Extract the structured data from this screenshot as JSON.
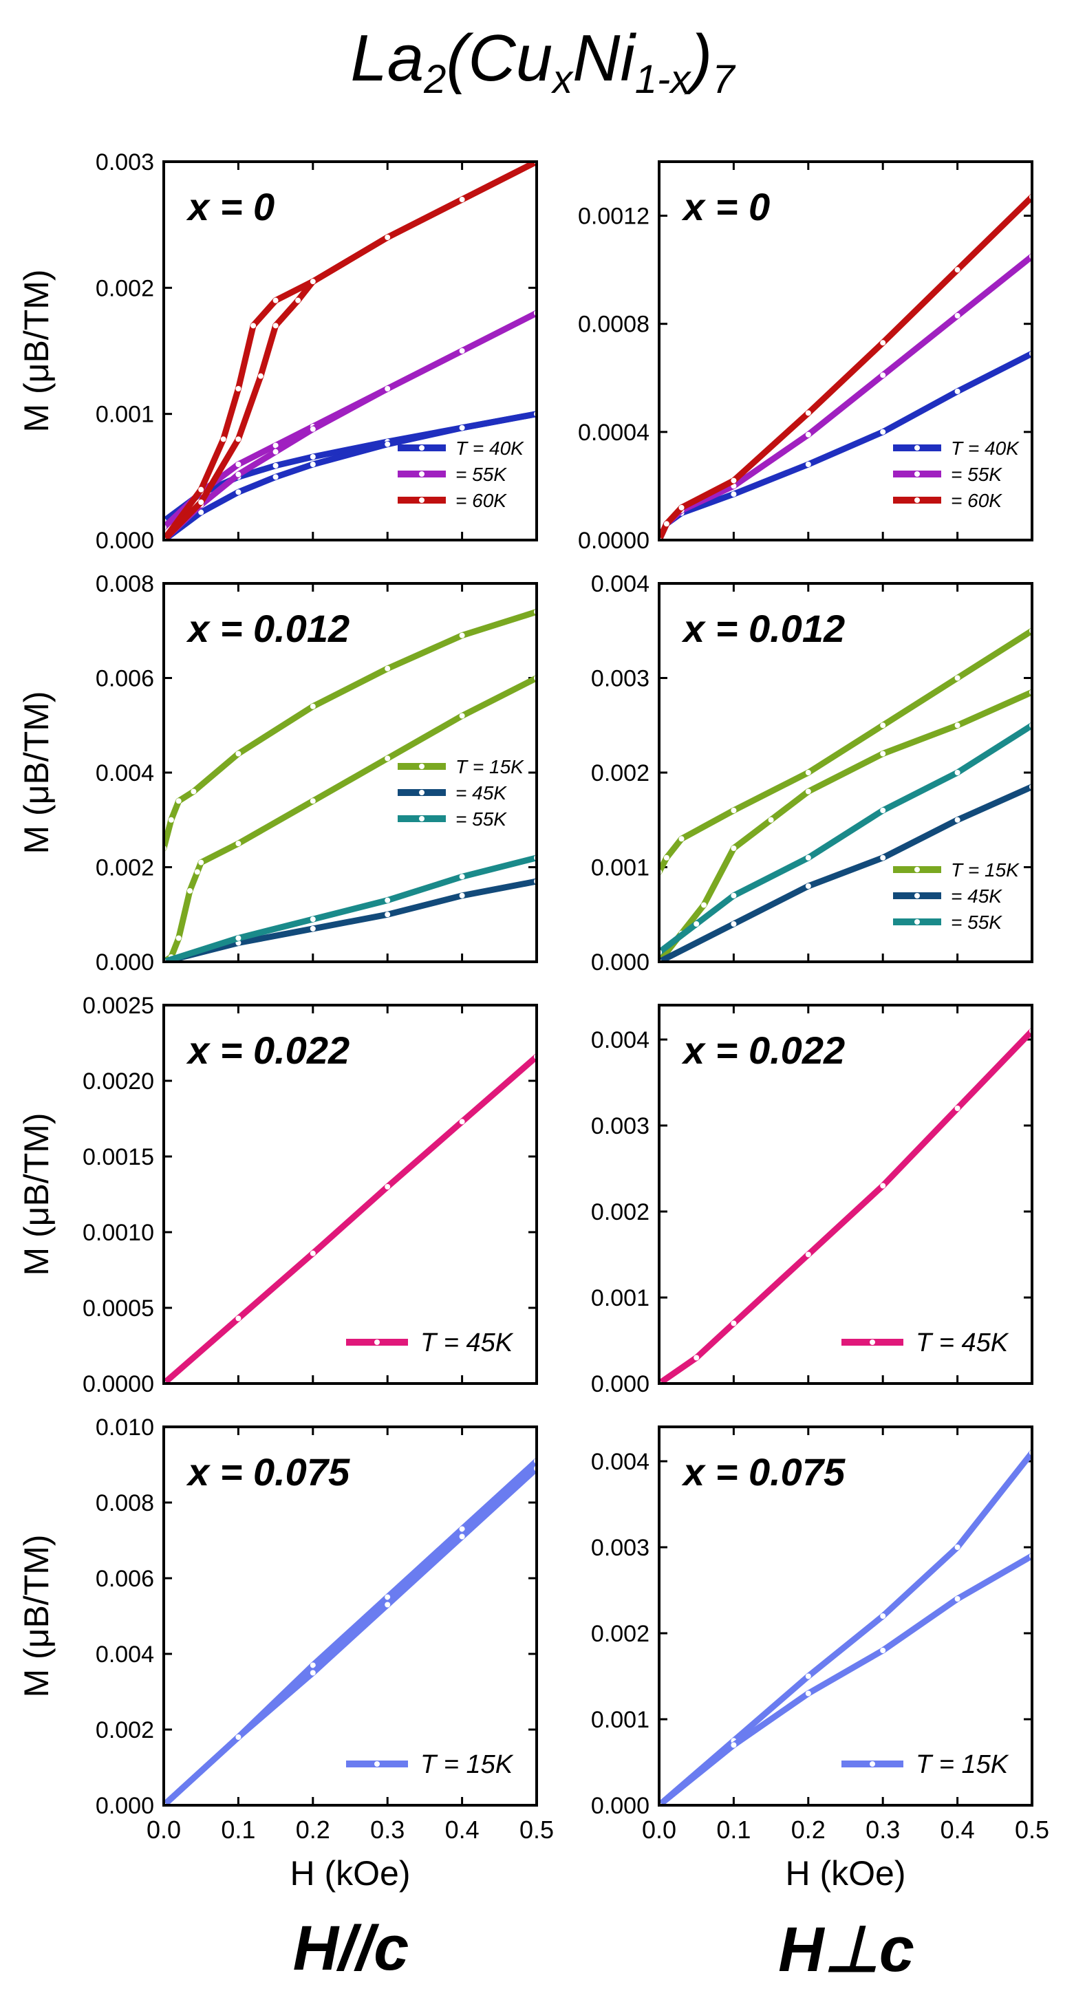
{
  "figure": {
    "title": {
      "base": "La",
      "sub1": "2",
      "open": "(Cu",
      "sub2": "x",
      "mid": "Ni",
      "sub3": "1-x",
      "close": ")",
      "sub4": "7"
    },
    "column_titles": [
      "H//c",
      "H⊥c"
    ],
    "xlabel": "H (kOe)",
    "ylabel": "M (μB/TM)"
  },
  "chart_data": [
    {
      "type": "line",
      "panel": "x=0, H//c",
      "label": "x = 0",
      "xlim": [
        0,
        0.5
      ],
      "ylim": [
        0,
        0.003
      ],
      "xticks": [
        "0.0",
        "0.1",
        "0.2",
        "0.3",
        "0.4",
        "0.5"
      ],
      "yticks": [
        "0.000",
        "0.001",
        "0.002",
        "0.003"
      ],
      "legend": [
        "T = 40K",
        "= 55K",
        "= 60K"
      ],
      "series": [
        {
          "name": "T = 40K",
          "color": "#1f2fbf",
          "x": [
            0,
            0.05,
            0.1,
            0.15,
            0.2,
            0.3,
            0.4,
            0.5
          ],
          "y": [
            0.00015,
            0.00037,
            0.0005,
            0.00059,
            0.00066,
            0.00078,
            0.00089,
            0.001
          ]
        },
        {
          "name": "T = 40K",
          "color": "#1f2fbf",
          "x": [
            0,
            0.05,
            0.1,
            0.15,
            0.2,
            0.3,
            0.4,
            0.5
          ],
          "y": [
            0,
            0.00022,
            0.00038,
            0.0005,
            0.0006,
            0.00076,
            0.00089,
            0.001
          ]
        },
        {
          "name": "= 55K",
          "color": "#a020c0",
          "x": [
            0,
            0.05,
            0.1,
            0.15,
            0.2,
            0.3,
            0.4,
            0.5
          ],
          "y": [
            0.0001,
            0.00038,
            0.0006,
            0.00075,
            0.0009,
            0.0012,
            0.0015,
            0.0018
          ]
        },
        {
          "name": "= 55K",
          "color": "#a020c0",
          "x": [
            0,
            0.05,
            0.1,
            0.15,
            0.2,
            0.3,
            0.4,
            0.5
          ],
          "y": [
            0,
            0.00028,
            0.00052,
            0.0007,
            0.00088,
            0.0012,
            0.0015,
            0.0018
          ]
        },
        {
          "name": "= 60K",
          "color": "#c01010",
          "x": [
            0,
            0.05,
            0.08,
            0.1,
            0.12,
            0.15,
            0.2,
            0.3,
            0.4,
            0.5
          ],
          "y": [
            0,
            0.0004,
            0.0008,
            0.0012,
            0.0017,
            0.0019,
            0.00205,
            0.0024,
            0.0027,
            0.003
          ]
        },
        {
          "name": "= 60K",
          "color": "#c01010",
          "x": [
            0,
            0.05,
            0.1,
            0.13,
            0.15,
            0.18,
            0.2,
            0.3,
            0.4,
            0.5
          ],
          "y": [
            0,
            0.0003,
            0.0008,
            0.0013,
            0.0017,
            0.0019,
            0.00205,
            0.0024,
            0.0027,
            0.003
          ]
        }
      ]
    },
    {
      "type": "line",
      "panel": "x=0, H⊥c",
      "label": "x = 0",
      "xlim": [
        0,
        0.5
      ],
      "ylim": [
        0,
        0.0014
      ],
      "xticks": [
        "0.0",
        "0.1",
        "0.2",
        "0.3",
        "0.4",
        "0.5"
      ],
      "yticks": [
        "0.0000",
        "0.0004",
        "0.0008",
        "0.0012"
      ],
      "legend": [
        "T = 40K",
        "= 55K",
        "= 60K"
      ],
      "series": [
        {
          "name": "T = 40K",
          "color": "#1f2fbf",
          "x": [
            0,
            0.01,
            0.03,
            0.1,
            0.2,
            0.3,
            0.4,
            0.5
          ],
          "y": [
            0,
            6e-05,
            0.0001,
            0.00017,
            0.00028,
            0.0004,
            0.00055,
            0.00069
          ]
        },
        {
          "name": "= 55K",
          "color": "#a020c0",
          "x": [
            0,
            0.01,
            0.03,
            0.1,
            0.2,
            0.3,
            0.4,
            0.5
          ],
          "y": [
            0,
            6e-05,
            0.00011,
            0.0002,
            0.00039,
            0.00061,
            0.00083,
            0.00105
          ]
        },
        {
          "name": "= 60K",
          "color": "#c01010",
          "x": [
            0,
            0.01,
            0.03,
            0.1,
            0.2,
            0.3,
            0.4,
            0.5
          ],
          "y": [
            0,
            6e-05,
            0.00012,
            0.00022,
            0.00047,
            0.00073,
            0.001,
            0.00127
          ]
        }
      ]
    },
    {
      "type": "line",
      "panel": "x=0.012, H//c",
      "label": "x = 0.012",
      "xlim": [
        0,
        0.5
      ],
      "ylim": [
        0,
        0.008
      ],
      "xticks": [
        "0.0",
        "0.1",
        "0.2",
        "0.3",
        "0.4",
        "0.5"
      ],
      "yticks": [
        "0.000",
        "0.002",
        "0.004",
        "0.006",
        "0.008"
      ],
      "legend": [
        "T = 15K",
        "= 45K",
        "= 55K"
      ],
      "series": [
        {
          "name": "T = 15K",
          "color": "#7aa821",
          "x": [
            0,
            0.01,
            0.02,
            0.04,
            0.1,
            0.2,
            0.3,
            0.4,
            0.5
          ],
          "y": [
            0.0024,
            0.003,
            0.0034,
            0.0036,
            0.0044,
            0.0054,
            0.0062,
            0.0069,
            0.0074
          ]
        },
        {
          "name": "T = 15K",
          "color": "#7aa821",
          "x": [
            0,
            0.01,
            0.02,
            0.035,
            0.045,
            0.05,
            0.1,
            0.2,
            0.3,
            0.4,
            0.5
          ],
          "y": [
            0,
            0.0001,
            0.0005,
            0.0015,
            0.0019,
            0.0021,
            0.0025,
            0.0034,
            0.0043,
            0.0052,
            0.006
          ]
        },
        {
          "name": "= 45K",
          "color": "#124a7a",
          "x": [
            0,
            0.1,
            0.2,
            0.3,
            0.4,
            0.5
          ],
          "y": [
            0,
            0.0004,
            0.0007,
            0.001,
            0.0014,
            0.0017
          ]
        },
        {
          "name": "= 55K",
          "color": "#1a8a8a",
          "x": [
            0,
            0.1,
            0.2,
            0.3,
            0.4,
            0.5
          ],
          "y": [
            0,
            0.0005,
            0.0009,
            0.0013,
            0.0018,
            0.0022
          ]
        }
      ]
    },
    {
      "type": "line",
      "panel": "x=0.012, H⊥c",
      "label": "x = 0.012",
      "xlim": [
        0,
        0.5
      ],
      "ylim": [
        0,
        0.004
      ],
      "xticks": [
        "0.0",
        "0.1",
        "0.2",
        "0.3",
        "0.4",
        "0.5"
      ],
      "yticks": [
        "0.000",
        "0.001",
        "0.002",
        "0.003",
        "0.004"
      ],
      "legend": [
        "T = 15K",
        "= 45K",
        "= 55K"
      ],
      "series": [
        {
          "name": "T = 15K",
          "color": "#7aa821",
          "x": [
            0,
            0.01,
            0.03,
            0.1,
            0.2,
            0.3,
            0.4,
            0.5
          ],
          "y": [
            0.00095,
            0.0011,
            0.0013,
            0.0016,
            0.002,
            0.0025,
            0.003,
            0.0035
          ]
        },
        {
          "name": "T = 15K",
          "color": "#7aa821",
          "x": [
            0,
            0.03,
            0.06,
            0.1,
            0.15,
            0.2,
            0.3,
            0.4,
            0.5
          ],
          "y": [
            0,
            0.0003,
            0.0006,
            0.0012,
            0.0015,
            0.0018,
            0.0022,
            0.0025,
            0.00285
          ]
        },
        {
          "name": "= 45K",
          "color": "#124a7a",
          "x": [
            0,
            0.1,
            0.2,
            0.3,
            0.4,
            0.5
          ],
          "y": [
            0,
            0.0004,
            0.0008,
            0.0011,
            0.0015,
            0.00185
          ]
        },
        {
          "name": "= 55K",
          "color": "#1a8a8a",
          "x": [
            0,
            0.05,
            0.1,
            0.2,
            0.3,
            0.4,
            0.5
          ],
          "y": [
            0.0001,
            0.0004,
            0.0007,
            0.0011,
            0.0016,
            0.002,
            0.0025
          ]
        }
      ]
    },
    {
      "type": "line",
      "panel": "x=0.022, H//c",
      "label": "x = 0.022",
      "xlim": [
        0,
        0.5
      ],
      "ylim": [
        0,
        0.0025
      ],
      "xticks": [
        "0.0",
        "0.1",
        "0.2",
        "0.3",
        "0.4",
        "0.5"
      ],
      "yticks": [
        "0.0000",
        "0.0005",
        "0.0010",
        "0.0015",
        "0.0020",
        "0.0025"
      ],
      "legend": [
        "T = 45K"
      ],
      "series": [
        {
          "name": "T = 45K",
          "color": "#e0187a",
          "x": [
            0,
            0.1,
            0.2,
            0.3,
            0.4,
            0.5
          ],
          "y": [
            0,
            0.00043,
            0.00086,
            0.0013,
            0.00173,
            0.00216
          ]
        }
      ]
    },
    {
      "type": "line",
      "panel": "x=0.022, H⊥c",
      "label": "x = 0.022",
      "xlim": [
        0,
        0.5
      ],
      "ylim": [
        0,
        0.0044
      ],
      "xticks": [
        "0.0",
        "0.1",
        "0.2",
        "0.3",
        "0.4",
        "0.5"
      ],
      "yticks": [
        "0.000",
        "0.001",
        "0.002",
        "0.003",
        "0.004"
      ],
      "legend": [
        "T = 45K"
      ],
      "series": [
        {
          "name": "T = 45K",
          "color": "#e0187a",
          "x": [
            0,
            0.05,
            0.1,
            0.2,
            0.3,
            0.4,
            0.5
          ],
          "y": [
            0,
            0.0003,
            0.0007,
            0.0015,
            0.0023,
            0.0032,
            0.0041
          ]
        }
      ]
    },
    {
      "type": "line",
      "panel": "x=0.075, H//c",
      "label": "x = 0.075",
      "xlim": [
        0,
        0.5
      ],
      "ylim": [
        0,
        0.01
      ],
      "xticks": [
        "0.0",
        "0.1",
        "0.2",
        "0.3",
        "0.4",
        "0.5"
      ],
      "yticks": [
        "0.000",
        "0.002",
        "0.004",
        "0.006",
        "0.008",
        "0.010"
      ],
      "legend": [
        "T = 15K"
      ],
      "series": [
        {
          "name": "T = 15K",
          "color": "#6a7cf0",
          "x": [
            0,
            0.1,
            0.2,
            0.3,
            0.4,
            0.5
          ],
          "y": [
            0,
            0.0018,
            0.0037,
            0.0055,
            0.0073,
            0.0091
          ]
        },
        {
          "name": "T = 15K",
          "color": "#6a7cf0",
          "x": [
            0,
            0.1,
            0.2,
            0.3,
            0.4,
            0.5
          ],
          "y": [
            0,
            0.0018,
            0.0035,
            0.0053,
            0.0071,
            0.0089
          ]
        }
      ]
    },
    {
      "type": "line",
      "panel": "x=0.075, H⊥c",
      "label": "x = 0.075",
      "xlim": [
        0,
        0.5
      ],
      "ylim": [
        0,
        0.0044
      ],
      "xticks": [
        "0.0",
        "0.1",
        "0.2",
        "0.3",
        "0.4",
        "0.5"
      ],
      "yticks": [
        "0.000",
        "0.001",
        "0.002",
        "0.003",
        "0.004"
      ],
      "legend": [
        "T = 15K"
      ],
      "series": [
        {
          "name": "T = 15K",
          "color": "#6a7cf0",
          "x": [
            0,
            0.1,
            0.2,
            0.3,
            0.4,
            0.5
          ],
          "y": [
            0,
            0.00075,
            0.0015,
            0.0022,
            0.003,
            0.0041
          ]
        },
        {
          "name": "T = 15K",
          "color": "#6a7cf0",
          "x": [
            0,
            0.1,
            0.2,
            0.3,
            0.4,
            0.5
          ],
          "y": [
            0,
            0.0007,
            0.0013,
            0.0018,
            0.0024,
            0.0029
          ]
        }
      ]
    }
  ]
}
